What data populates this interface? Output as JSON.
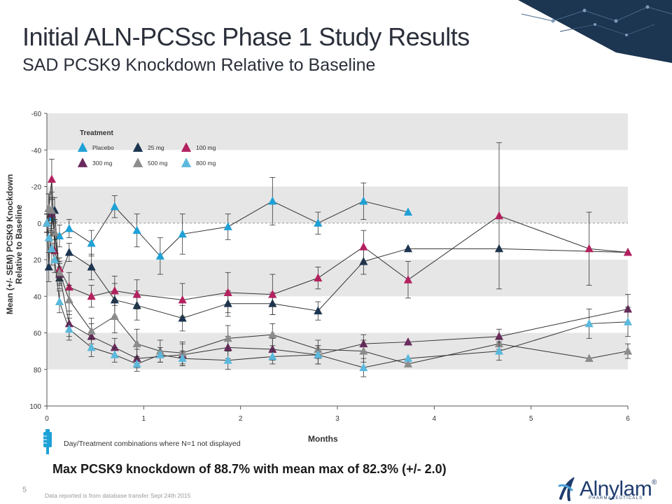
{
  "header": {
    "title": "Initial ALN-PCSsc Phase 1 Study Results",
    "subtitle": "SAD PCSK9 Knockdown Relative to Baseline"
  },
  "footnote": "Day/Treatment combinations where N=1 not displayed",
  "conclusion": "Max PCSK9 knockdown of 88.7% with mean max of 82.3% (+/- 2.0)",
  "page_number": "5",
  "source_note": "Data reported is from database transfer Sept 24th 2015",
  "logo": {
    "name": "Alnylam",
    "registered": "®",
    "tagline": "PHARMACEUTICALS"
  },
  "colors": {
    "band": "#e6e6e6",
    "title": "#2a2f3a",
    "navy": "#1c3550"
  },
  "icons": {
    "vial": "syringe-vial-icon",
    "logo": "alnylam-logo-icon",
    "corner": "network-corner-icon"
  },
  "chart_data": {
    "type": "line",
    "title": "",
    "xlabel": "Months",
    "ylabel": "Mean (+/- SEM) PCSK9 Knockdown Relative to Baseline",
    "xlim": [
      0,
      6
    ],
    "ylim": [
      -60,
      100
    ],
    "y_inverted": true,
    "xticks": [
      0,
      1,
      2,
      3,
      4,
      5,
      6
    ],
    "yticks": [
      -60,
      -40,
      -20,
      0,
      20,
      40,
      60,
      80,
      100
    ],
    "ytick_labels": [
      "-60",
      "-40",
      "-20",
      "0",
      "20",
      "40",
      "60",
      "80",
      "100"
    ],
    "alternating_bands": true,
    "reference_line": 0,
    "legend": {
      "title": "Treatment",
      "position": "top-left"
    },
    "series": [
      {
        "name": "Placebo",
        "color": "#1ea1d6",
        "x": [
          0,
          0.02,
          0.05,
          0.08,
          0.13,
          0.23,
          0.46,
          0.7,
          0.93,
          1.17,
          1.4,
          1.87,
          2.33,
          2.8,
          3.27,
          3.73
        ],
        "y": [
          0,
          -8,
          -3,
          5,
          7,
          3,
          11,
          -9,
          4,
          18,
          6,
          2,
          -12,
          0,
          -12,
          -6
        ],
        "err": [
          5,
          8,
          10,
          6,
          6,
          5,
          7,
          6,
          9,
          10,
          11,
          7,
          13,
          6,
          10,
          0
        ]
      },
      {
        "name": "25 mg",
        "color": "#1c3550",
        "x": [
          0,
          0.02,
          0.05,
          0.08,
          0.13,
          0.23,
          0.46,
          0.7,
          0.93,
          1.4,
          1.87,
          2.33,
          2.8,
          3.27,
          3.73,
          4.67,
          6
        ],
        "y": [
          0,
          24,
          -5,
          -7,
          30,
          16,
          24,
          42,
          45,
          52,
          44,
          44,
          48,
          21,
          14,
          14,
          16
        ],
        "err": [
          5,
          8,
          9,
          7,
          6,
          5,
          7,
          9,
          8,
          7,
          7,
          6,
          5,
          7,
          0,
          0,
          0
        ]
      },
      {
        "name": "100 mg",
        "color": "#b3215f",
        "x": [
          0,
          0.02,
          0.05,
          0.08,
          0.13,
          0.23,
          0.46,
          0.7,
          0.93,
          1.4,
          1.87,
          2.33,
          2.8,
          3.27,
          3.73,
          4.67,
          5.6,
          6
        ],
        "y": [
          0,
          -8,
          -24,
          15,
          25,
          35,
          40,
          37,
          39,
          42,
          38,
          39,
          30,
          13,
          31,
          -4,
          14,
          16
        ],
        "err": [
          5,
          8,
          11,
          6,
          6,
          8,
          6,
          8,
          8,
          9,
          11,
          11,
          6,
          9,
          10,
          40,
          20,
          0
        ]
      },
      {
        "name": "300 mg",
        "color": "#6b2a5e",
        "x": [
          0,
          0.02,
          0.05,
          0.08,
          0.13,
          0.23,
          0.46,
          0.7,
          0.93,
          1.4,
          1.87,
          2.33,
          2.8,
          3.27,
          3.73,
          4.67,
          6
        ],
        "y": [
          0,
          -8,
          -5,
          5,
          28,
          55,
          62,
          68,
          74,
          72,
          68,
          69,
          72,
          66,
          65,
          62,
          47
        ],
        "err": [
          5,
          8,
          9,
          7,
          6,
          7,
          7,
          5,
          5,
          6,
          6,
          6,
          5,
          5,
          0,
          4,
          8
        ]
      },
      {
        "name": "500 mg",
        "color": "#8c8c8c",
        "x": [
          0,
          0.02,
          0.05,
          0.08,
          0.13,
          0.23,
          0.46,
          0.7,
          0.93,
          1.17,
          1.4,
          1.87,
          2.33,
          2.8,
          3.27,
          3.73,
          4.67,
          5.6,
          6
        ],
        "y": [
          0,
          -8,
          -7,
          5,
          27,
          42,
          59,
          51,
          66,
          70,
          71,
          63,
          61,
          69,
          70,
          77,
          66,
          74,
          70
        ],
        "err": [
          5,
          8,
          10,
          7,
          6,
          8,
          7,
          9,
          8,
          6,
          6,
          7,
          6,
          5,
          6,
          0,
          3,
          0,
          4
        ]
      },
      {
        "name": "800 mg",
        "color": "#5bb9dc",
        "x": [
          0,
          0.02,
          0.05,
          0.08,
          0.13,
          0.23,
          0.46,
          0.7,
          0.93,
          1.17,
          1.4,
          1.87,
          2.33,
          2.8,
          3.27,
          3.73,
          4.67,
          5.6,
          6
        ],
        "y": [
          0,
          8,
          14,
          20,
          43,
          58,
          68,
          72,
          77,
          72,
          74,
          75,
          73,
          72,
          79,
          74,
          70,
          55,
          54
        ],
        "err": [
          5,
          8,
          9,
          7,
          6,
          6,
          5,
          4,
          4,
          4,
          4,
          5,
          4,
          5,
          5,
          0,
          5,
          8,
          8
        ]
      }
    ]
  }
}
